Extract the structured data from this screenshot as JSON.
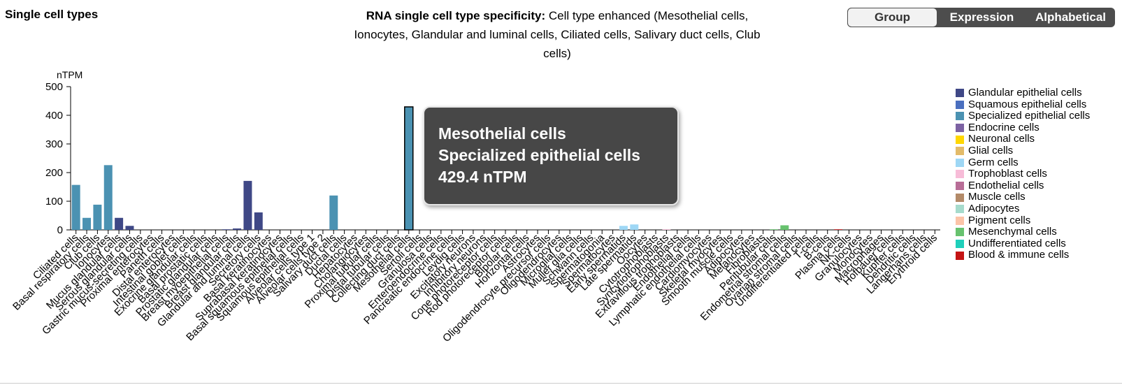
{
  "page_title": "Single cell types",
  "chart_title": {
    "bold": "RNA single cell type specificity:",
    "text": "Cell type enhanced (Mesothelial cells, Ionocytes, Glandular and luminal cells, Ciliated cells, Salivary duct cells, Club cells)"
  },
  "sort_buttons": [
    "Group",
    "Expression",
    "Alphabetical"
  ],
  "active_sort": "Group",
  "tooltip": {
    "name": "Mesothelial cells",
    "group": "Specialized epithelial cells",
    "value_text": "429.4 nTPM"
  },
  "legend": [
    {
      "label": "Glandular epithelial cells",
      "color": "#3f4886"
    },
    {
      "label": "Squamous epithelial cells",
      "color": "#4a6fbf"
    },
    {
      "label": "Specialized epithelial cells",
      "color": "#4b92b2"
    },
    {
      "label": "Endocrine cells",
      "color": "#7c62a3"
    },
    {
      "label": "Neuronal cells",
      "color": "#ffd700"
    },
    {
      "label": "Glial cells",
      "color": "#e3bb69"
    },
    {
      "label": "Germ cells",
      "color": "#9ed7f5"
    },
    {
      "label": "Trophoblast cells",
      "color": "#f7bcd8"
    },
    {
      "label": "Endothelial cells",
      "color": "#b86d97"
    },
    {
      "label": "Muscle cells",
      "color": "#b38a68"
    },
    {
      "label": "Adipocytes",
      "color": "#a6dbcc"
    },
    {
      "label": "Pigment cells",
      "color": "#fcc4a8"
    },
    {
      "label": "Mesenchymal cells",
      "color": "#67c26e"
    },
    {
      "label": "Undifferentiated cells",
      "color": "#1fcfba"
    },
    {
      "label": "Blood & immune cells",
      "color": "#c41414"
    }
  ],
  "chart_data": {
    "type": "bar",
    "ylabel": "nTPM",
    "ylim": [
      0,
      500
    ],
    "yticks": [
      0,
      100,
      200,
      300,
      400,
      500
    ],
    "highlighted": "Mesothelial cells",
    "categories": [
      "Ciliated cells",
      "Basal respiratory cells",
      "Club cells",
      "Ionocytes",
      "Mucus glandular cells",
      "Serous glandular cells",
      "Gastric mucus-secreting cells",
      "Proximal enterocytes",
      "Paneth cells",
      "Distal enterocytes",
      "Intestinal goblet cells",
      "Exocrine glandular cells",
      "Basal prostatic cells",
      "Prostatic glandular cells",
      "Breast myoepithelial cells",
      "Breast glandular cells",
      "Glandular and luminal cells",
      "Secretory cells",
      "Basal keratinocytes",
      "Suprabasal keratinocytes",
      "Basal squamous epithelial cells",
      "Squamous epithelial cells",
      "Alveolar cells type 1",
      "Alveolar cells type 2",
      "Salivary duct cells",
      "Ductal cells",
      "Hepatocytes",
      "Cholangiocytes",
      "Proximal tubular cells",
      "Distal tubular cells",
      "Collecting duct cells",
      "Mesothelial cells",
      "Sertoli cells",
      "Granulosa cells",
      "Enteroendocrine cells",
      "Pancreatic endocrine cells",
      "Leydig cells",
      "Excitatory neurons",
      "Inhibitory neurons",
      "Cone photoreceptor cells",
      "Rod photoreceptor cells",
      "Bipolar cells",
      "Horizontal cells",
      "Astrocytes",
      "Oligodendrocyte precursor cells",
      "Oligodendrocytes",
      "Microglial cells",
      "Muller glia cells",
      "Schwann cells",
      "Spermatogonia",
      "Spermatocytes",
      "Early spermatids",
      "Late spermatids",
      "Oocytes",
      "Cytotrophoblasts",
      "Syncytiotrophoblasts",
      "Extravillous trophoblasts",
      "Endothelial cells",
      "Lymphatic endothelial cells",
      "Cardiomyocytes",
      "Skeletal myocytes",
      "Smooth muscle cells",
      "Adipocytes",
      "Melanocytes",
      "Fibroblasts",
      "Peritubular cells",
      "Endometrial stromal cells",
      "Ovarian stromal cells",
      "Undifferentiated cells",
      "T-cells",
      "B-cells",
      "Plasma cells",
      "NK-cells",
      "Granulocytes",
      "Monocytes",
      "Macrophages",
      "Hofbauer cells",
      "Kupffer cells",
      "Dendritic cells",
      "Langerhans cells",
      "Erythroid cells"
    ],
    "values": [
      157,
      42,
      88,
      226,
      42,
      14,
      0,
      0,
      0,
      0,
      0,
      0,
      0,
      0,
      2,
      5,
      171,
      61,
      0,
      0,
      0,
      0,
      0,
      0,
      120,
      0,
      0,
      0,
      0,
      0,
      0,
      429.4,
      0,
      0,
      0,
      0,
      0,
      0,
      0,
      0,
      0,
      0,
      0,
      0,
      0,
      0,
      0,
      0,
      0,
      0,
      0,
      14,
      19,
      0,
      0,
      2,
      0,
      0,
      0,
      0,
      0,
      0,
      0,
      0,
      0,
      2,
      16,
      0,
      0,
      0,
      0,
      2,
      0,
      0,
      0,
      0,
      0,
      0,
      0,
      0,
      0
    ],
    "groups": [
      2,
      2,
      2,
      2,
      0,
      0,
      0,
      0,
      0,
      0,
      0,
      0,
      0,
      0,
      0,
      0,
      0,
      0,
      1,
      1,
      1,
      1,
      2,
      2,
      2,
      0,
      0,
      0,
      0,
      0,
      0,
      2,
      0,
      0,
      3,
      3,
      3,
      4,
      4,
      4,
      4,
      4,
      4,
      5,
      5,
      5,
      5,
      5,
      5,
      6,
      6,
      6,
      6,
      6,
      7,
      7,
      7,
      8,
      8,
      9,
      9,
      9,
      10,
      11,
      12,
      12,
      12,
      12,
      13,
      14,
      14,
      14,
      14,
      14,
      14,
      14,
      14,
      14,
      14,
      14,
      14
    ]
  }
}
